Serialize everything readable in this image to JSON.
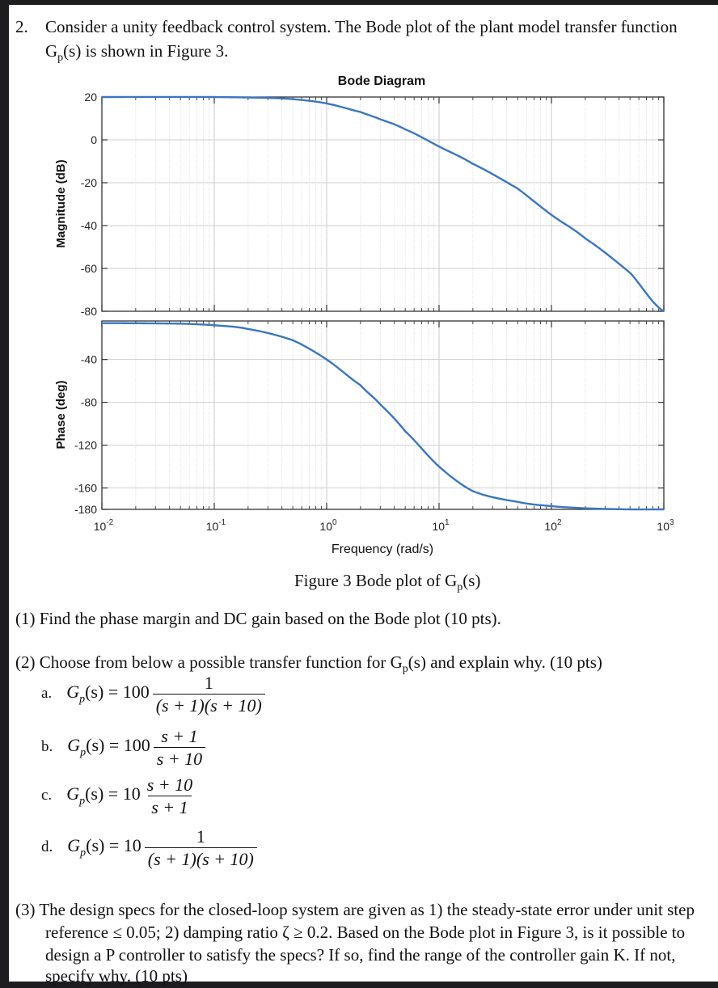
{
  "problem": {
    "number": "2.",
    "intro_line1": "Consider a unity feedback control system. The Bode plot of the plant model transfer function",
    "intro_line2_pre": "G",
    "intro_line2_sub": "p",
    "intro_line2_post": "(s) is shown in Figure 3."
  },
  "figure": {
    "caption_pre": "Figure 3 Bode plot of G",
    "caption_sub": "p",
    "caption_post": "(s)"
  },
  "chart_data": {
    "type": "line",
    "title": "Bode Diagram",
    "xlabel": "Frequency  (rad/s)",
    "x_scale": "log",
    "xlim": [
      0.01,
      1000
    ],
    "x_ticks": [
      {
        "base": "10",
        "exp": "-2"
      },
      {
        "base": "10",
        "exp": "-1"
      },
      {
        "base": "10",
        "exp": "0"
      },
      {
        "base": "10",
        "exp": "1"
      },
      {
        "base": "10",
        "exp": "2"
      },
      {
        "base": "10",
        "exp": "3"
      }
    ],
    "magnitude": {
      "ylabel": "Magnitude (dB)",
      "ylim": [
        -80,
        20
      ],
      "yticks": [
        "20",
        "0",
        "-20",
        "-40",
        "-60",
        "-80"
      ],
      "x": [
        0.01,
        0.1,
        0.3,
        0.5,
        1,
        2,
        3,
        5,
        10,
        20,
        50,
        100,
        200,
        500,
        1000
      ],
      "y": [
        20,
        20,
        19.6,
        19,
        17,
        13,
        9.6,
        4.9,
        -3.1,
        -11.2,
        -22.7,
        -35,
        -46,
        -62,
        -80
      ]
    },
    "phase": {
      "ylabel": "Phase (deg)",
      "ylim": [
        -180,
        -4
      ],
      "yticks": [
        "-40",
        "-80",
        "-120",
        "-160",
        "-180"
      ],
      "x": [
        0.01,
        0.05,
        0.1,
        0.2,
        0.5,
        1,
        2,
        3,
        5,
        10,
        20,
        50,
        100,
        200,
        500,
        1000
      ],
      "y": [
        -6,
        -6.5,
        -8,
        -11.5,
        -22,
        -40,
        -64,
        -82,
        -107,
        -140,
        -163,
        -173,
        -177,
        -179,
        -180,
        -180
      ]
    }
  },
  "questions": {
    "q1": "(1) Find the phase margin and DC gain based on the Bode plot (10 pts).",
    "q2_pre": "(2) Choose from below a possible transfer function for G",
    "q2_sub": "p",
    "q2_post": "(s) and explain why. (10 pts)",
    "options": [
      {
        "label": "a.",
        "lhs": "G",
        "lhs_sub": "p",
        "lhs_arg": "(s) = 100",
        "num": "1",
        "den": "(s + 1)(s + 10)"
      },
      {
        "label": "b.",
        "lhs": "G",
        "lhs_sub": "p",
        "lhs_arg": "(s) = 100",
        "num": "s + 1",
        "den": "s + 10"
      },
      {
        "label": "c.",
        "lhs": "G",
        "lhs_sub": "p",
        "lhs_arg": "(s) = 10",
        "num": "s + 10",
        "den": "s + 1"
      },
      {
        "label": "d.",
        "lhs": "G",
        "lhs_sub": "p",
        "lhs_arg": "(s) = 10",
        "num": "1",
        "den": "(s + 1)(s + 10)"
      }
    ],
    "q3_line1": "(3) The design specs for the closed-loop system are given as 1) the steady-state error under unit step",
    "q3_line2": "reference ≤ 0.05; 2) damping ratio ζ ≥ 0.2. Based on the Bode plot in Figure 3, is it possible to",
    "q3_line3": "design a P controller to satisfy the specs? If so, find the range of the controller gain K. If not,",
    "q3_line4": "specify why. (10 pts)"
  }
}
